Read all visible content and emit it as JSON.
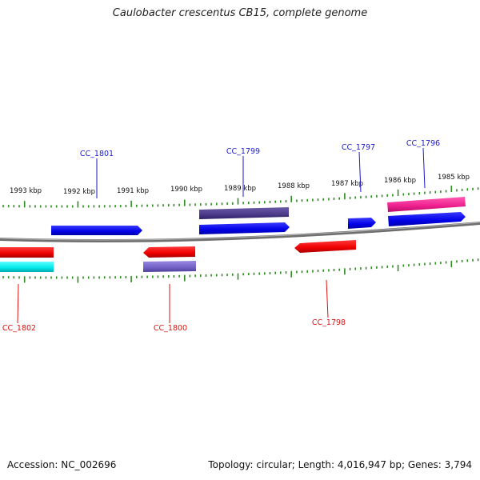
{
  "title": "Caulobacter crescentus CB15, complete genome",
  "footer": {
    "accession": "Accession: NC_002696",
    "summary": "Topology: circular; Length: 4,016,947 bp; Genes: 3,794"
  },
  "colors": {
    "backbone": "#8a8a8a",
    "ticks": "#2e8b22",
    "label_forward": "#1a1acc",
    "label_reverse": "#dd1111"
  },
  "scale_labels": [
    "1993 kbp",
    "1992 kbp",
    "1991 kbp",
    "1990 kbp",
    "1989 kbp",
    "1988 kbp",
    "1987 kbp",
    "1986 kbp",
    "1985 kbp"
  ],
  "genes": [
    {
      "name": "CC_1801",
      "strand": "forward"
    },
    {
      "name": "CC_1799",
      "strand": "forward"
    },
    {
      "name": "CC_1797",
      "strand": "forward"
    },
    {
      "name": "CC_1796",
      "strand": "forward"
    },
    {
      "name": "CC_1802",
      "strand": "reverse"
    },
    {
      "name": "CC_1800",
      "strand": "reverse"
    },
    {
      "name": "CC_1798",
      "strand": "reverse"
    }
  ]
}
